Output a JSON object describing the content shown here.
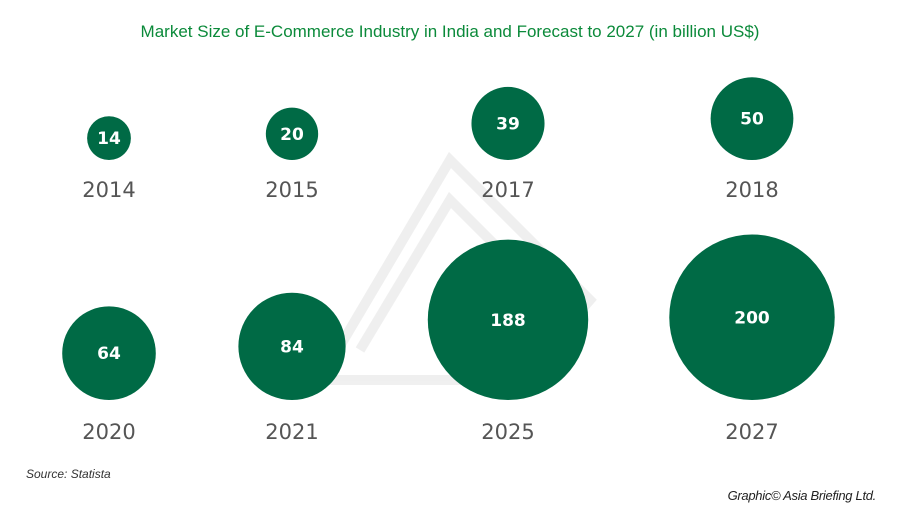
{
  "chart_data": {
    "type": "bubble",
    "title": "Market Size of E-Commerce Industry in India and Forecast to 2027 (in billion US$)",
    "categories": [
      "2014",
      "2015",
      "2017",
      "2018",
      "2020",
      "2021",
      "2025",
      "2027"
    ],
    "values": [
      14,
      20,
      39,
      50,
      64,
      84,
      188,
      200
    ],
    "unit": "billion US$",
    "bubble_color": "#006a45",
    "label_color": "#ffffff",
    "year_label_color": "#555555",
    "title_color": "#0b8a3a"
  },
  "footer": {
    "source": "Source: Statista",
    "credit": "Graphic© Asia Briefing Ltd."
  }
}
